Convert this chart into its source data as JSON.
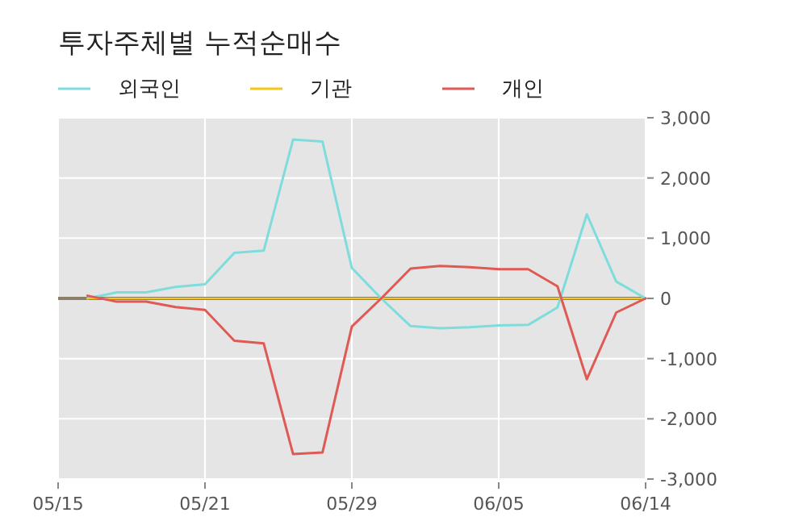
{
  "chart_data": {
    "type": "line",
    "title": "투자주체별 누적순매수",
    "categories": [
      "05/15",
      null,
      null,
      null,
      null,
      "05/21",
      null,
      null,
      null,
      null,
      "05/29",
      null,
      null,
      null,
      null,
      "06/05",
      null,
      null,
      null,
      null,
      "06/14"
    ],
    "series": [
      {
        "name": "외국인",
        "color": "#7fdcdc",
        "values": [
          null,
          0,
          100,
          100,
          190,
          235,
          757,
          793,
          2640,
          2604,
          505,
          0,
          -460,
          -495,
          -480,
          -450,
          -440,
          -150,
          1396,
          280,
          0
        ]
      },
      {
        "name": "기관",
        "color": "#f5c518",
        "values": [
          null,
          0,
          0,
          0,
          0,
          0,
          0,
          0,
          0,
          0,
          0,
          0,
          0,
          0,
          0,
          0,
          0,
          0,
          0,
          0,
          0
        ]
      },
      {
        "name": "개인",
        "color": "#e05a55",
        "values": [
          null,
          45,
          -55,
          -55,
          -145,
          -190,
          -703,
          -748,
          -2586,
          -2559,
          -468,
          0,
          495,
          540,
          520,
          485,
          485,
          200,
          -1342,
          -234,
          0
        ]
      }
    ],
    "ylim": [
      -3000,
      3000
    ],
    "yticks": [
      {
        "value": -3000,
        "label": "-3,000"
      },
      {
        "value": -2000,
        "label": "-2,000"
      },
      {
        "value": -1000,
        "label": "-1,000"
      },
      0,
      {
        "value": 1000,
        "label": "1,000"
      },
      {
        "value": 2000,
        "label": "2,000"
      },
      {
        "value": 3000,
        "label": "3,000"
      }
    ],
    "ref_lines": [
      {
        "axis": "y",
        "value": 0,
        "color": "#8a8068"
      }
    ],
    "grid": true,
    "legend": "top"
  }
}
